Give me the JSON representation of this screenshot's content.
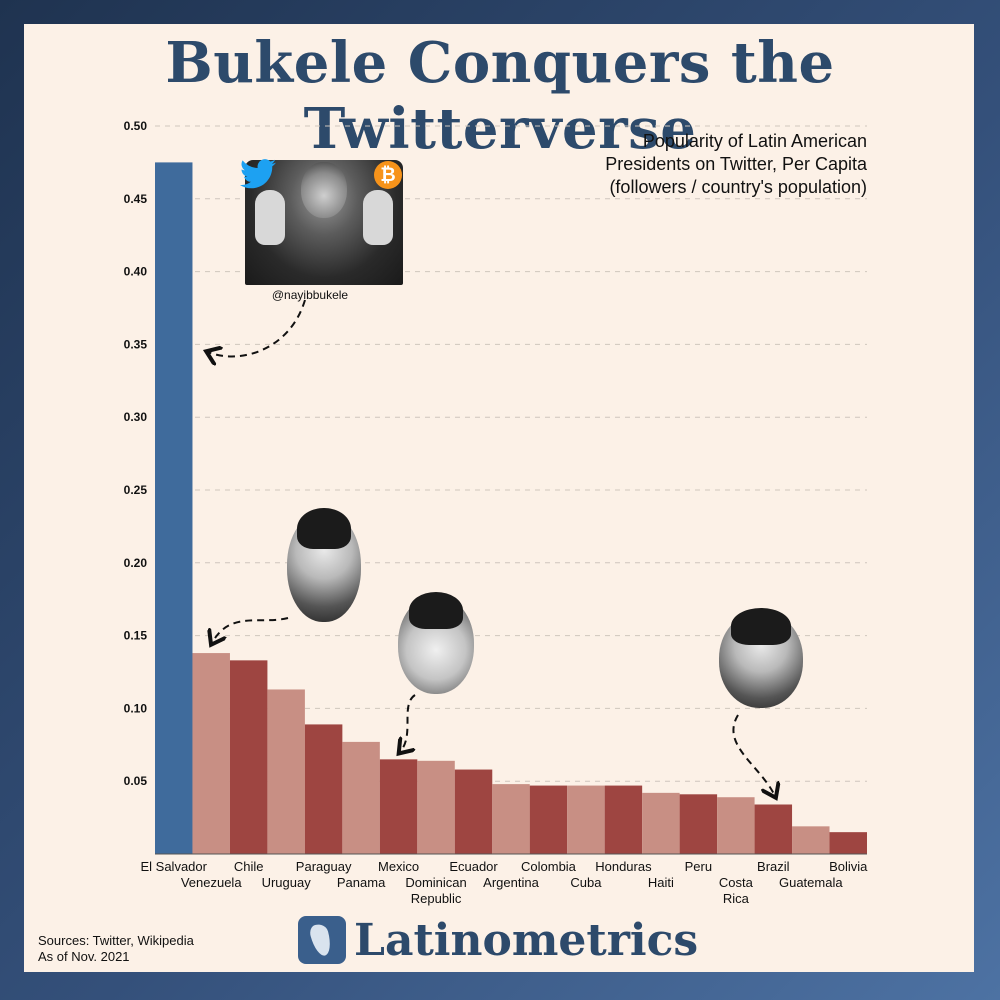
{
  "title": "Bukele Conquers the Twitterverse",
  "subtitle_lines": [
    "Popularity of Latin American",
    "Presidents on Twitter, Per Capita",
    "(followers / country's population)"
  ],
  "handle": "@nayibbukele",
  "sources": [
    "Sources: Twitter, Wikipedia",
    "As of Nov. 2021"
  ],
  "brand": "Latinometrics",
  "colors": {
    "highlight": "#3f6b9c",
    "dark": "#9e4541",
    "light": "#c88f84",
    "title": "#2d4a6b"
  },
  "icons": [
    "twitter-icon",
    "bitcoin-icon",
    "latinometrics-logo-icon"
  ],
  "chart_data": {
    "type": "bar",
    "title": "",
    "xlabel": "",
    "ylabel": "",
    "ylim": [
      0,
      0.5
    ],
    "y_ticks": [
      "0.05",
      "0.10",
      "0.15",
      "0.20",
      "0.25",
      "0.30",
      "0.35",
      "0.40",
      "0.45",
      "0.50"
    ],
    "grid": true,
    "categories": [
      "El Salvador",
      "Venezuela",
      "Chile",
      "Uruguay",
      "Paraguay",
      "Panama",
      "Mexico",
      "Dominican Republic",
      "Ecuador",
      "Argentina",
      "Colombia",
      "Cuba",
      "Honduras",
      "Haiti",
      "Peru",
      "Costa Rica",
      "Brazil",
      "Guatemala",
      "Bolivia"
    ],
    "category_labels": [
      [
        "El Salvador"
      ],
      [
        "Venezuela"
      ],
      [
        "Chile"
      ],
      [
        "Uruguay"
      ],
      [
        "Paraguay"
      ],
      [
        "Panama"
      ],
      [
        "Mexico"
      ],
      [
        "Dominican",
        "Republic"
      ],
      [
        "Ecuador"
      ],
      [
        "Argentina"
      ],
      [
        "Colombia"
      ],
      [
        "Cuba"
      ],
      [
        "Honduras"
      ],
      [
        "Haiti"
      ],
      [
        "Peru"
      ],
      [
        "Costa",
        "Rica"
      ],
      [
        "Brazil"
      ],
      [
        "Guatemala"
      ],
      [
        "Bolivia"
      ]
    ],
    "values": [
      0.475,
      0.138,
      0.133,
      0.113,
      0.089,
      0.077,
      0.065,
      0.064,
      0.058,
      0.048,
      0.047,
      0.047,
      0.047,
      0.042,
      0.041,
      0.039,
      0.034,
      0.019,
      0.015
    ]
  }
}
